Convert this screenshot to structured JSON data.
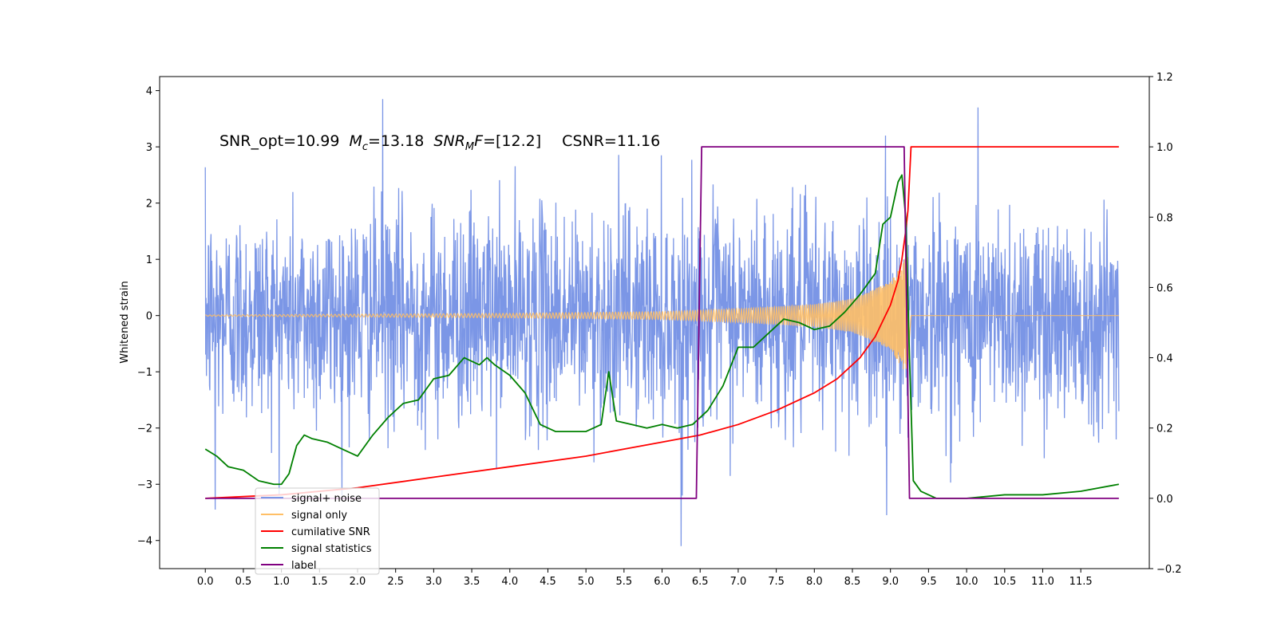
{
  "chart_data": {
    "type": "line",
    "title": "",
    "xlabel": "",
    "ylabel": "Whitened strain",
    "xlim": [
      -0.6,
      12.4
    ],
    "ylim": [
      -4.5,
      4.25
    ],
    "y2lim": [
      -0.2,
      1.2
    ],
    "x_ticks": [
      0.0,
      0.5,
      1.0,
      1.5,
      2.0,
      2.5,
      3.0,
      3.5,
      4.0,
      4.5,
      5.0,
      5.5,
      6.0,
      6.5,
      7.0,
      7.5,
      8.0,
      8.5,
      9.0,
      9.5,
      10.0,
      10.5,
      11.0,
      11.5
    ],
    "x_tick_labels": [
      "0.0",
      "0.5",
      "1.0",
      "1.5",
      "2.0",
      "2.5",
      "3.0",
      "3.5",
      "4.0",
      "4.5",
      "5.0",
      "5.5",
      "6.0",
      "6.5",
      "7.0",
      "7.5",
      "8.0",
      "8.5",
      "9.0",
      "9.5",
      "10.0",
      "10.5",
      "11.0",
      "11.5"
    ],
    "y_ticks": [
      4,
      3,
      2,
      1,
      0,
      -1,
      -2,
      -3,
      -4
    ],
    "y_tick_labels": [
      "4",
      "3",
      "2",
      "1",
      "0",
      "−1",
      "−2",
      "−3",
      "−4"
    ],
    "y2_ticks": [
      1.2,
      1.0,
      0.8,
      0.6,
      0.4,
      0.2,
      0.0,
      -0.2
    ],
    "y2_tick_labels": [
      "1.2",
      "1.0",
      "0.8",
      "0.6",
      "0.4",
      "0.2",
      "0.0",
      "−0.2"
    ],
    "grid": false,
    "legend_position": "bottom-left",
    "annotation": {
      "part1": "SNR_opt=10.99",
      "mc_symbol": "M",
      "mc_sub": "c",
      "mc_value": "=13.18",
      "snr_symbol": "SNR",
      "snr_sub": "M",
      "snr_f": "F",
      "snr_value": "=[12.2]",
      "csnr": "CSNR=11.16"
    },
    "series": [
      {
        "name": "signal+ noise",
        "axis": "left",
        "color": "#7b96e6",
        "style": "noise",
        "x_start": 0.0,
        "x_end": 12.0,
        "sigma": 1.0,
        "notable_peaks": [
          [
            2.33,
            3.85
          ],
          [
            10.15,
            3.7
          ],
          [
            6.25,
            -4.1
          ],
          [
            0.13,
            -3.45
          ],
          [
            8.95,
            -3.55
          ]
        ]
      },
      {
        "name": "signal only",
        "axis": "left",
        "color": "#ffbf66",
        "style": "chirp",
        "x_start": 0.0,
        "x_end": 12.0,
        "merger_x": 9.23,
        "amplitude_at": [
          [
            0.0,
            0.01
          ],
          [
            4.0,
            0.04
          ],
          [
            6.0,
            0.07
          ],
          [
            7.0,
            0.12
          ],
          [
            8.0,
            0.2
          ],
          [
            8.5,
            0.3
          ],
          [
            9.0,
            0.6
          ],
          [
            9.23,
            1.1
          ]
        ]
      },
      {
        "name": "cumilative SNR",
        "axis": "right",
        "color": "#ff0000",
        "x": [
          0.0,
          1.0,
          2.0,
          3.0,
          4.0,
          5.0,
          5.5,
          6.0,
          6.5,
          7.0,
          7.5,
          8.0,
          8.3,
          8.6,
          8.8,
          9.0,
          9.1,
          9.15,
          9.2,
          9.23,
          9.27,
          9.5,
          10.0,
          11.0,
          12.0
        ],
        "values": [
          0.0,
          0.01,
          0.03,
          0.06,
          0.09,
          0.12,
          0.14,
          0.16,
          0.18,
          0.21,
          0.25,
          0.3,
          0.34,
          0.4,
          0.46,
          0.55,
          0.62,
          0.68,
          0.76,
          0.82,
          1.0,
          1.0,
          1.0,
          1.0,
          1.0
        ]
      },
      {
        "name": "signal statistics",
        "axis": "right",
        "color": "#008000",
        "x": [
          0.0,
          0.15,
          0.3,
          0.5,
          0.7,
          0.9,
          1.0,
          1.1,
          1.2,
          1.3,
          1.4,
          1.6,
          1.8,
          2.0,
          2.2,
          2.4,
          2.6,
          2.8,
          3.0,
          3.2,
          3.4,
          3.6,
          3.7,
          3.8,
          4.0,
          4.2,
          4.4,
          4.6,
          4.8,
          5.0,
          5.2,
          5.3,
          5.4,
          5.6,
          5.8,
          6.0,
          6.2,
          6.4,
          6.6,
          6.8,
          7.0,
          7.2,
          7.4,
          7.6,
          7.8,
          8.0,
          8.2,
          8.4,
          8.6,
          8.8,
          8.9,
          9.0,
          9.1,
          9.15,
          9.2,
          9.25,
          9.3,
          9.4,
          9.6,
          10.0,
          10.5,
          11.0,
          11.5,
          12.0
        ],
        "values": [
          0.14,
          0.12,
          0.09,
          0.08,
          0.05,
          0.04,
          0.04,
          0.07,
          0.15,
          0.18,
          0.17,
          0.16,
          0.14,
          0.12,
          0.18,
          0.23,
          0.27,
          0.28,
          0.34,
          0.35,
          0.4,
          0.38,
          0.4,
          0.38,
          0.35,
          0.3,
          0.21,
          0.19,
          0.19,
          0.19,
          0.21,
          0.36,
          0.22,
          0.21,
          0.2,
          0.21,
          0.2,
          0.21,
          0.25,
          0.32,
          0.43,
          0.43,
          0.47,
          0.51,
          0.5,
          0.48,
          0.49,
          0.53,
          0.58,
          0.64,
          0.78,
          0.8,
          0.9,
          0.92,
          0.8,
          0.4,
          0.05,
          0.02,
          0.0,
          0.0,
          0.01,
          0.01,
          0.02,
          0.04
        ]
      },
      {
        "name": "label",
        "axis": "right",
        "color": "#800080",
        "x": [
          0.0,
          6.45,
          6.52,
          9.18,
          9.25,
          12.0
        ],
        "values": [
          0.0,
          0.0,
          1.0,
          1.0,
          0.0,
          0.0
        ]
      }
    ]
  },
  "legend": {
    "items": [
      {
        "label": "signal+ noise",
        "color": "#7b96e6"
      },
      {
        "label": "signal only",
        "color": "#ffbf66"
      },
      {
        "label": "cumilative SNR",
        "color": "#ff0000"
      },
      {
        "label": "signal statistics",
        "color": "#008000"
      },
      {
        "label": "label",
        "color": "#800080"
      }
    ]
  }
}
